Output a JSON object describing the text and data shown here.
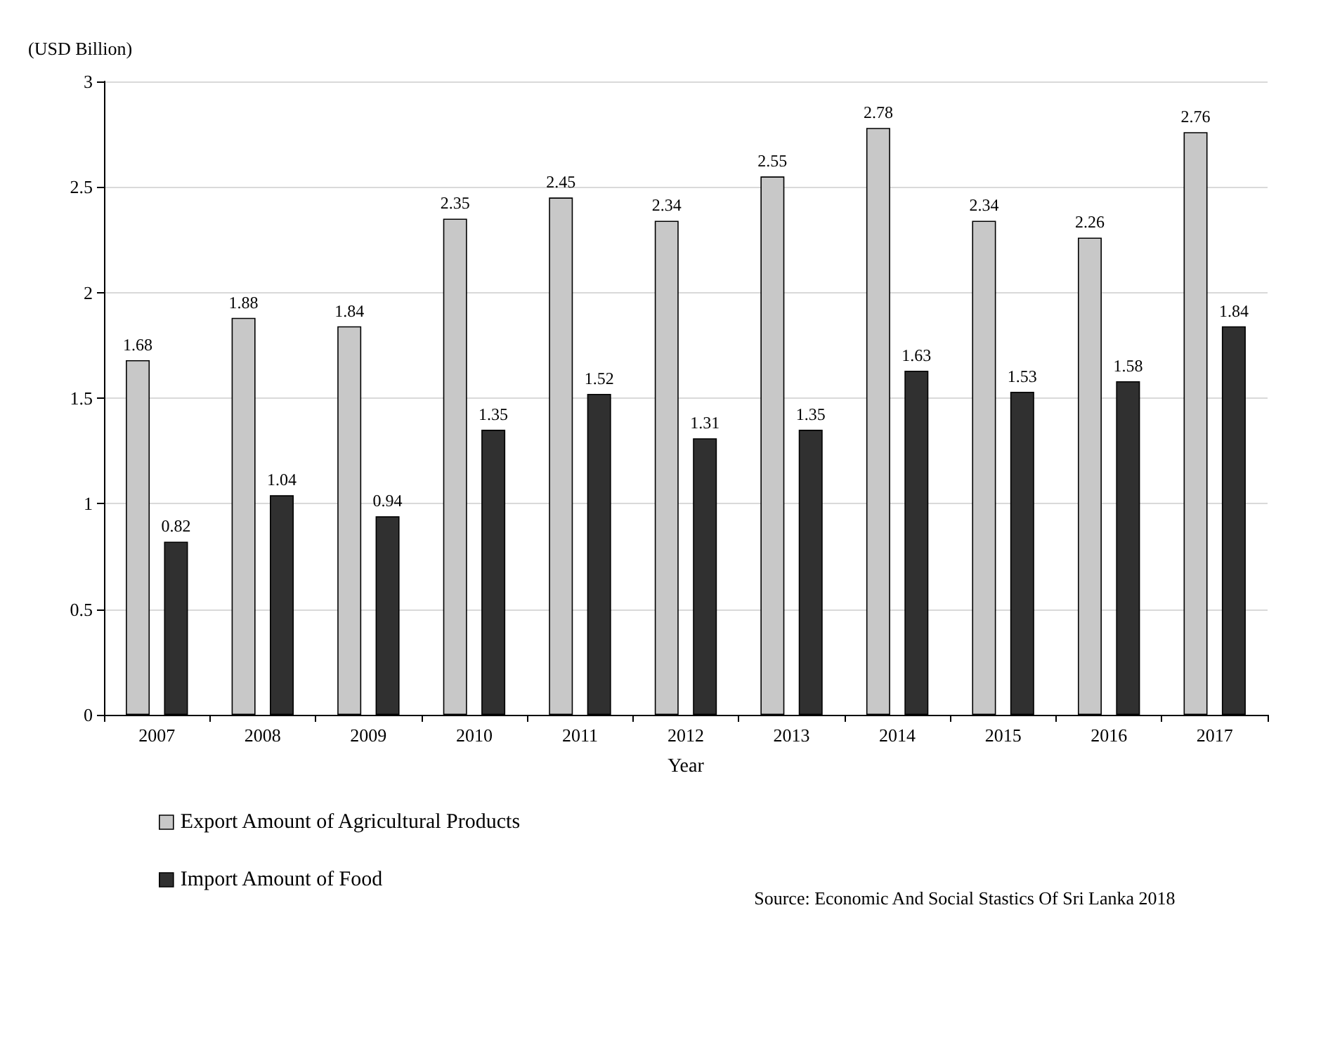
{
  "chart_data": {
    "type": "bar",
    "ylabel": "(USD Billion)",
    "xlabel": "Year",
    "categories": [
      "2007",
      "2008",
      "2009",
      "2010",
      "2011",
      "2012",
      "2013",
      "2014",
      "2015",
      "2016",
      "2017"
    ],
    "series": [
      {
        "name": "Export Amount of Agricultural Products",
        "color": "#c8c8c8",
        "values": [
          1.68,
          1.88,
          1.84,
          2.35,
          2.45,
          2.34,
          2.55,
          2.78,
          2.34,
          2.26,
          2.76
        ]
      },
      {
        "name": "Import Amount of Food",
        "color": "#303030",
        "values": [
          0.82,
          1.04,
          0.94,
          1.35,
          1.52,
          1.31,
          1.35,
          1.63,
          1.53,
          1.58,
          1.84
        ]
      }
    ],
    "ylim": [
      0,
      3
    ],
    "yticks": [
      0,
      0.5,
      1,
      1.5,
      2,
      2.5,
      3
    ],
    "grid": "y",
    "legend": "bottom left",
    "data_labels": true,
    "annotations": [
      "Source: Economic And Social Stastics Of Sri Lanka 2018"
    ]
  }
}
